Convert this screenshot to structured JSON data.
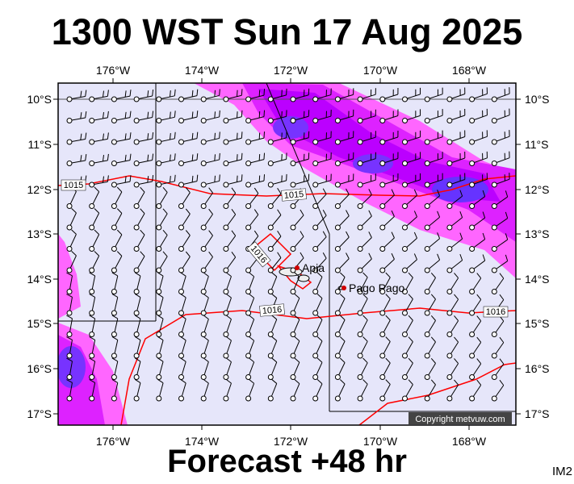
{
  "header": {
    "title": "1300 WST Sun 17 Aug 2025"
  },
  "footer": {
    "forecast": "Forecast +48 hr",
    "corner_code": "IM2"
  },
  "map": {
    "copyright": "Copyright metvuw.com",
    "lon_ticks": [
      "176°W",
      "174°W",
      "172°W",
      "170°W",
      "168°W"
    ],
    "lat_ticks": [
      "10°S",
      "11°S",
      "12°S",
      "13°S",
      "14°S",
      "15°S",
      "16°S",
      "17°S"
    ],
    "cities": [
      {
        "name": "Apia"
      },
      {
        "name": "Pago Pago"
      }
    ],
    "isobars": [
      {
        "label": "1015"
      },
      {
        "label": "1015"
      },
      {
        "label": "1016"
      },
      {
        "label": "1016"
      },
      {
        "label": "1016"
      }
    ],
    "colors": {
      "background": "#e6e6fa",
      "rain_light": "#ff66ff",
      "rain_mid": "#cc00ff",
      "rain_heavy": "#6633ff",
      "isobar": "#ff0000"
    }
  }
}
